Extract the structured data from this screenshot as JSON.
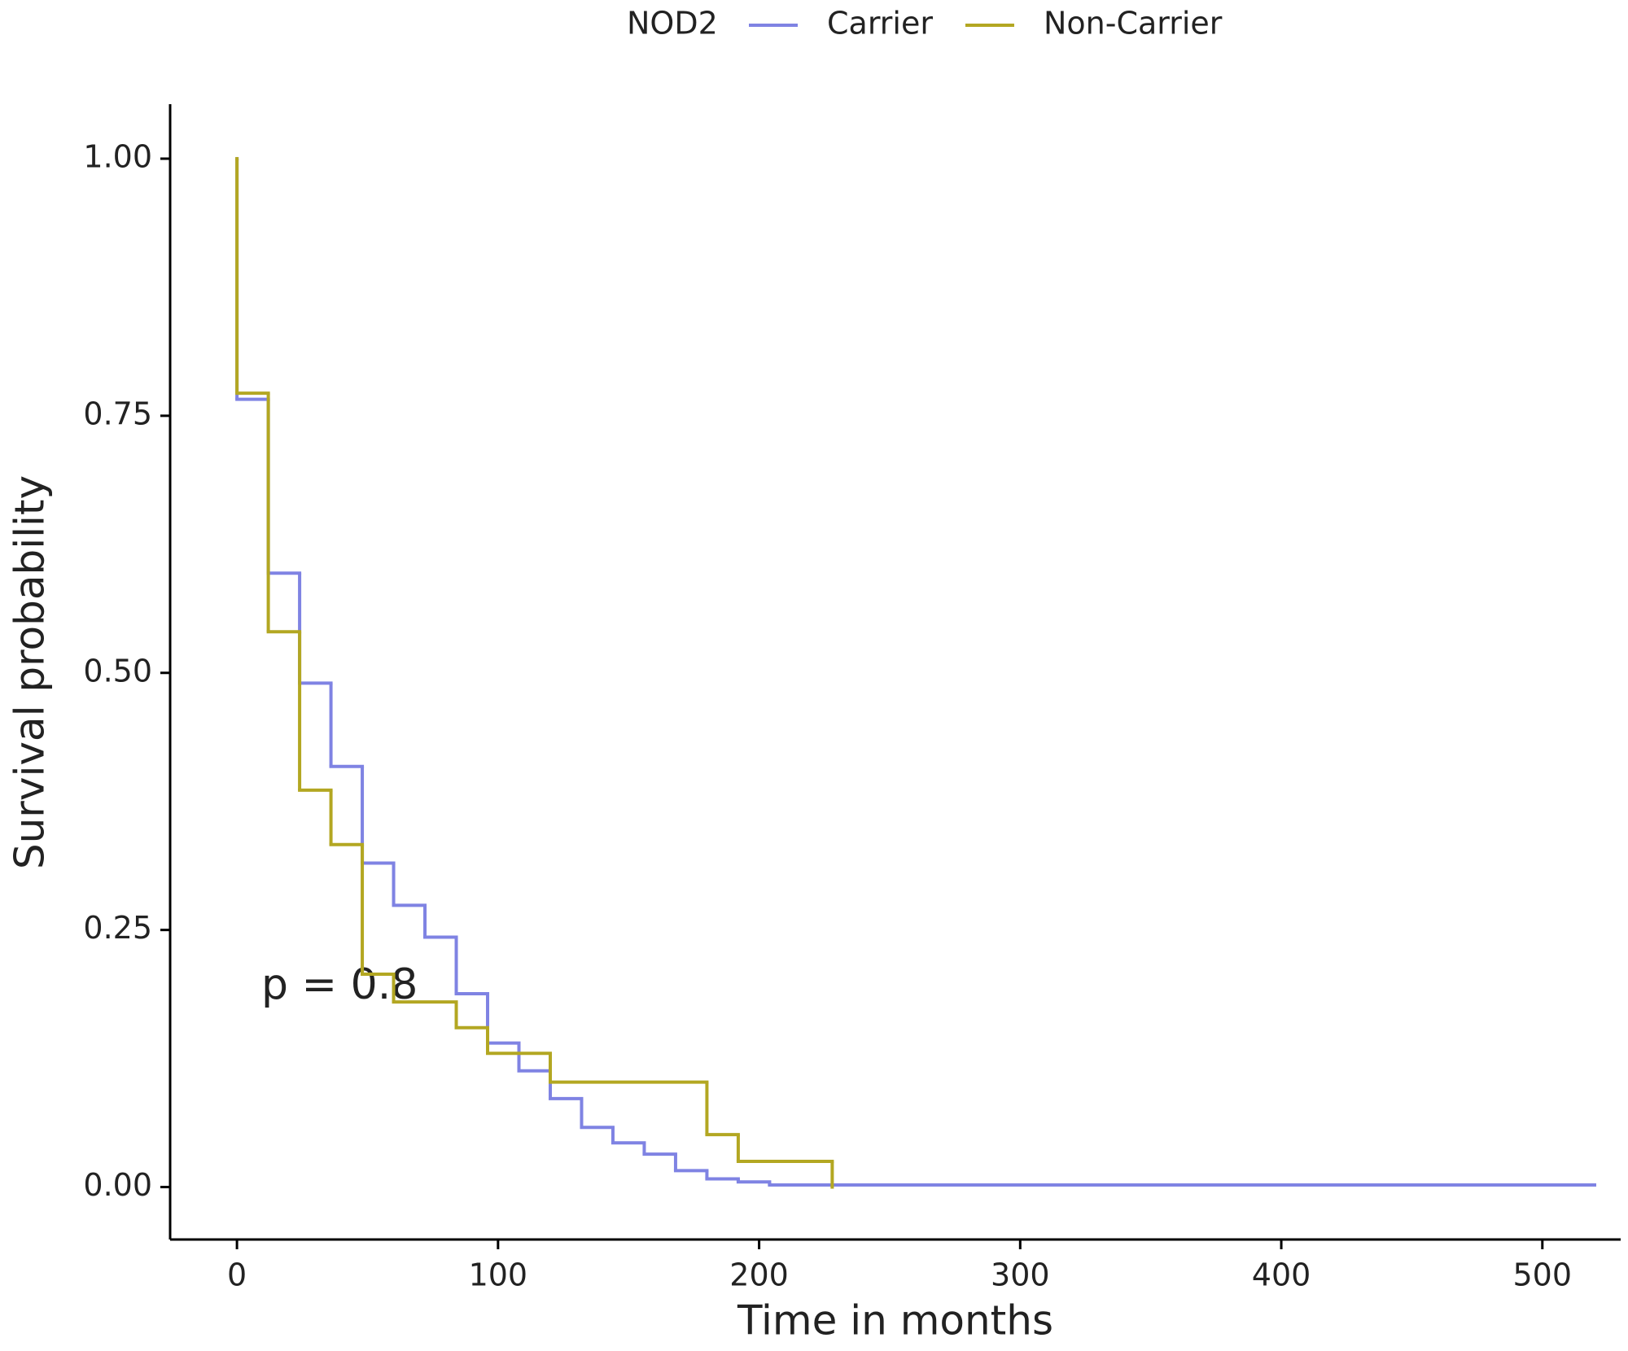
{
  "chart_data": {
    "type": "step",
    "legend_title": "NOD2",
    "xlabel": "Time in months",
    "ylabel": "Survival probability",
    "annotation": "p = 0.8",
    "xlim": [
      -25.6,
      530
    ],
    "xticks": [
      0,
      100,
      200,
      300,
      400,
      500
    ],
    "ylim": [
      -0.051,
      1.053
    ],
    "yticks": [
      {
        "value": 0,
        "label": "0.00"
      },
      {
        "value": 0.25,
        "label": "0.25"
      },
      {
        "value": 0.5,
        "label": "0.50"
      },
      {
        "value": 0.75,
        "label": "0.75"
      },
      {
        "value": 1,
        "label": "1.00"
      }
    ],
    "series": [
      {
        "name": "Carrier",
        "color": "#7f83e3",
        "x": [
          0,
          0,
          12,
          24,
          36,
          48,
          60,
          72,
          84,
          96,
          108,
          120,
          132,
          144,
          156,
          168,
          180,
          192,
          204,
          520
        ],
        "values": [
          1,
          0.766,
          0.597,
          0.49,
          0.409,
          0.315,
          0.274,
          0.243,
          0.188,
          0.14,
          0.113,
          0.086,
          0.058,
          0.043,
          0.032,
          0.016,
          0.008,
          0.005,
          0.002,
          0.002
        ]
      },
      {
        "name": "Non-Carrier",
        "color": "#b3a722",
        "x": [
          0,
          0,
          12,
          24,
          36,
          48,
          60,
          84,
          96,
          120,
          180,
          192,
          228
        ],
        "values": [
          1,
          0.772,
          0.54,
          0.386,
          0.333,
          0.207,
          0.18,
          0.155,
          0.13,
          0.102,
          0.051,
          0.025,
          0
        ]
      }
    ]
  }
}
